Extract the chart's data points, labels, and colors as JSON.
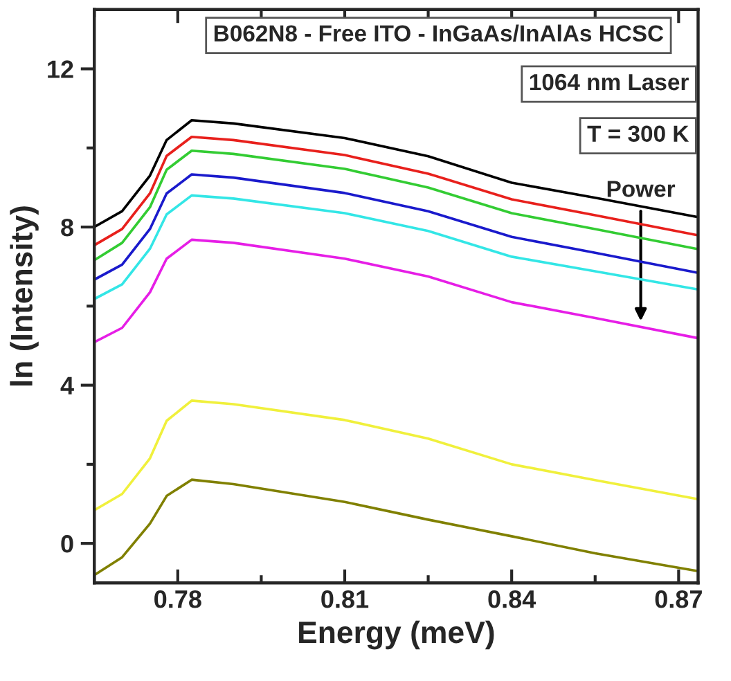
{
  "chart_data": {
    "type": "line",
    "xlabel": "Energy (meV)",
    "ylabel": "ln (Intensity)",
    "x": [
      0.765,
      0.77,
      0.775,
      0.778,
      0.7825,
      0.79,
      0.81,
      0.825,
      0.84,
      0.855,
      0.8735
    ],
    "series": [
      {
        "color": "#000000",
        "values": [
          8.0,
          8.4,
          9.3,
          10.2,
          10.7,
          10.62,
          10.25,
          9.79,
          9.12,
          8.74,
          8.25
        ]
      },
      {
        "color": "#e8201c",
        "values": [
          7.54,
          7.95,
          8.85,
          9.8,
          10.28,
          10.2,
          9.82,
          9.35,
          8.7,
          8.3,
          7.79
        ]
      },
      {
        "color": "#33cc33",
        "values": [
          7.16,
          7.6,
          8.5,
          9.45,
          9.93,
          9.85,
          9.47,
          9.0,
          8.35,
          7.95,
          7.44
        ]
      },
      {
        "color": "#1a1acc",
        "values": [
          6.67,
          7.05,
          7.95,
          8.85,
          9.33,
          9.25,
          8.86,
          8.4,
          7.75,
          7.35,
          6.84
        ]
      },
      {
        "color": "#33e6e6",
        "values": [
          6.18,
          6.55,
          7.45,
          8.32,
          8.8,
          8.72,
          8.35,
          7.9,
          7.25,
          6.88,
          6.42
        ]
      },
      {
        "color": "#e61ee6",
        "values": [
          5.09,
          5.45,
          6.35,
          7.2,
          7.68,
          7.6,
          7.2,
          6.75,
          6.1,
          5.7,
          5.19
        ]
      },
      {
        "color": "#f0f03c",
        "values": [
          0.84,
          1.25,
          2.15,
          3.1,
          3.61,
          3.52,
          3.12,
          2.65,
          2.0,
          1.6,
          1.12
        ]
      },
      {
        "color": "#808000",
        "values": [
          -0.8,
          -0.35,
          0.5,
          1.2,
          1.61,
          1.5,
          1.05,
          0.6,
          0.18,
          -0.25,
          -0.7
        ]
      }
    ],
    "xlim": [
      0.765,
      0.8735
    ],
    "ylim": [
      -1,
      13.5
    ],
    "xticks": [
      0.78,
      0.81,
      0.84,
      0.87
    ],
    "yticks": [
      0,
      4,
      8,
      12
    ],
    "grid": false,
    "marker": "none",
    "line_style": "solid",
    "annotations": [
      "B062N8 - Free ITO - InGaAs/InAlAs HCSC",
      "1064 nm Laser",
      "T = 300 K",
      "Power"
    ]
  }
}
